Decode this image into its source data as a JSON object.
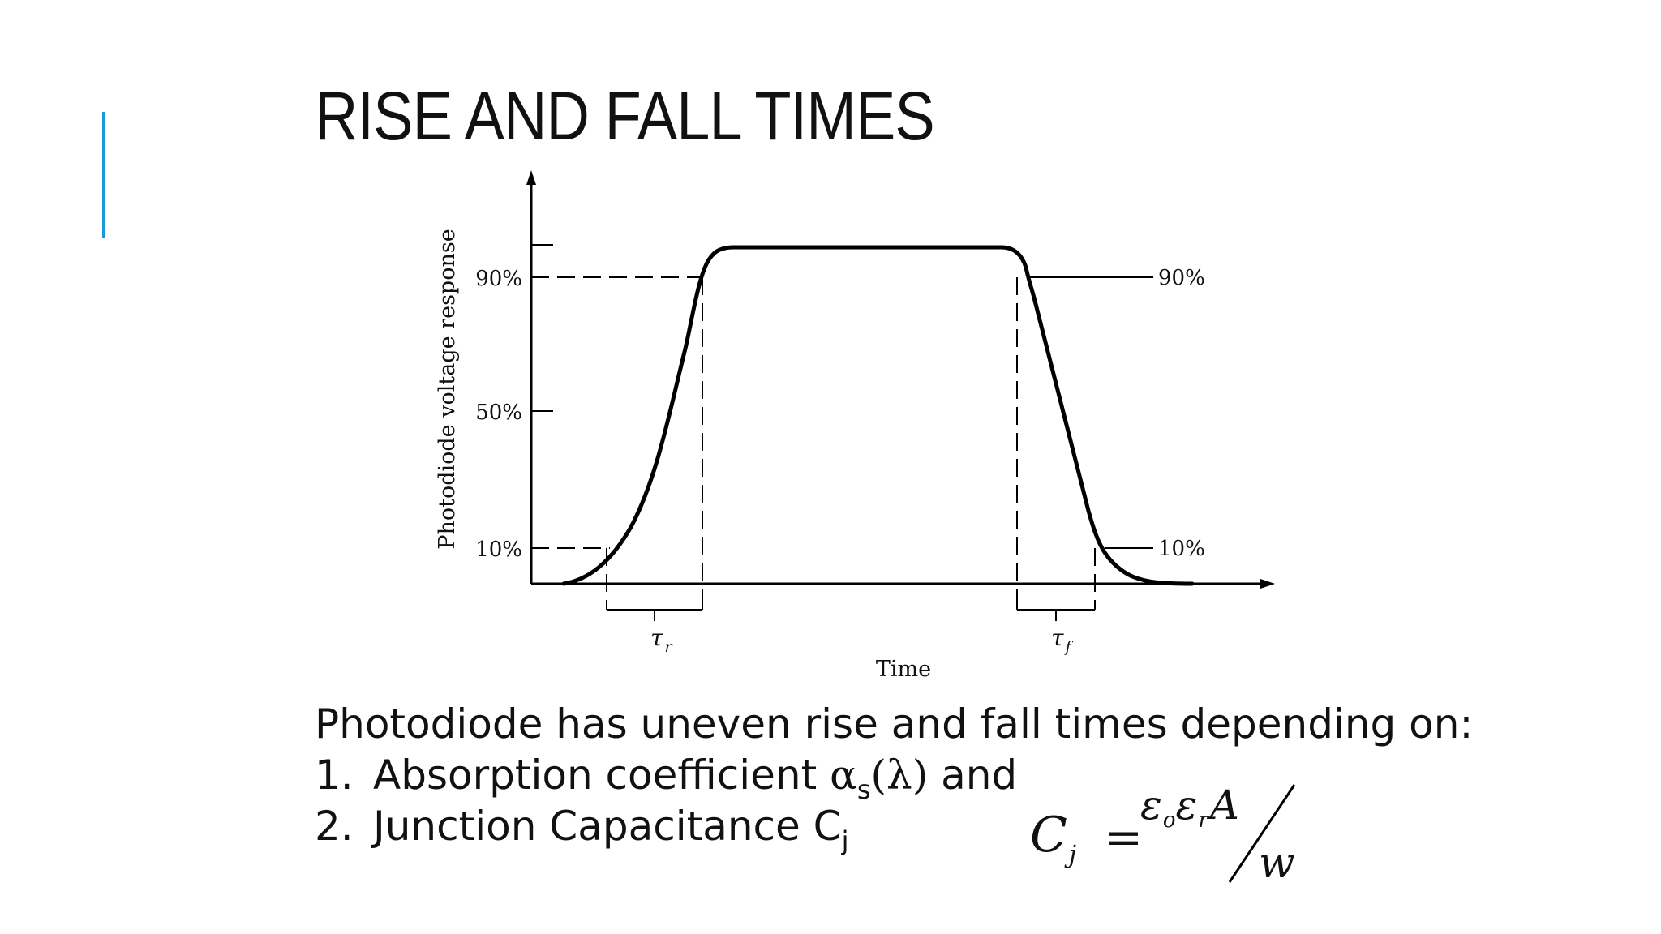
{
  "slide": {
    "title": "RISE AND FALL TIMES",
    "accent_color": "#1a9bd7"
  },
  "figure": {
    "y_axis_label": "Photodiode voltage response",
    "x_axis_label": "Time",
    "left_ticks": [
      "90%",
      "50%",
      "10%"
    ],
    "right_labels": [
      "90%",
      "10%"
    ],
    "rise_symbol": "τ",
    "rise_subscript": "r",
    "fall_symbol": "τ",
    "fall_subscript": "f"
  },
  "body": {
    "intro": "Photodiode has uneven rise and fall times depending on:",
    "item1_number": "1.",
    "item1_text": "Absorption coefficient ",
    "item1_alpha": "α",
    "item1_sub": "s",
    "item1_lambda": "(λ)",
    "item1_tail": " and",
    "item2_number": "2.",
    "item2_text": "Junction Capacitance C",
    "item2_sub": "j"
  },
  "formula": {
    "lhs": "C",
    "lhs_sub": "j",
    "equals": "=",
    "eps1": "ε",
    "eps1_sub": "o",
    "eps2": "ε",
    "eps2_sub": "r",
    "area": "A",
    "width": "w"
  }
}
